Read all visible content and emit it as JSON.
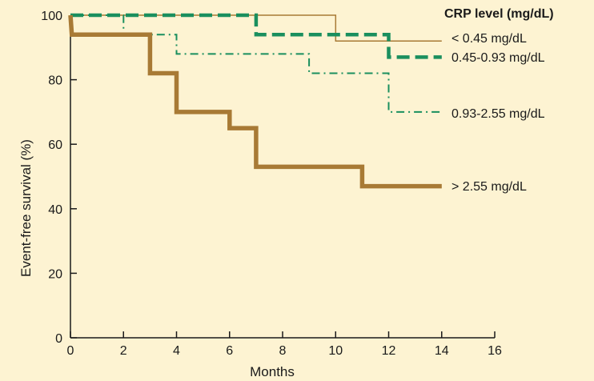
{
  "chart_data": {
    "type": "line",
    "title": "",
    "xlabel": "Months",
    "ylabel": "Event-free survival (%)",
    "xlim": [
      0,
      16
    ],
    "ylim": [
      0,
      100
    ],
    "xticks": [
      0,
      2,
      4,
      6,
      8,
      10,
      12,
      14,
      16
    ],
    "yticks": [
      0,
      20,
      40,
      60,
      80,
      100
    ],
    "grid": false,
    "legend_title": "CRP level (mg/dL)",
    "legend_placement": "right",
    "series": [
      {
        "name": "< 0.45 mg/dL",
        "color": "#a87a35",
        "style": "thin-solid",
        "points": [
          [
            0,
            100
          ],
          [
            10,
            100
          ],
          [
            10,
            92
          ],
          [
            14,
            92
          ]
        ]
      },
      {
        "name": "0.45-0.93 mg/dL",
        "color": "#1a8f5e",
        "style": "thick-dashed",
        "points": [
          [
            0,
            100
          ],
          [
            7,
            100
          ],
          [
            7,
            94
          ],
          [
            12,
            94
          ],
          [
            12,
            87
          ],
          [
            14,
            87
          ]
        ]
      },
      {
        "name": "0.93-2.55 mg/dL",
        "color": "#1a8f5e",
        "style": "dash-dot",
        "points": [
          [
            0,
            100
          ],
          [
            2,
            100
          ],
          [
            2,
            94
          ],
          [
            4,
            94
          ],
          [
            4,
            88
          ],
          [
            9,
            88
          ],
          [
            9,
            82
          ],
          [
            12,
            82
          ],
          [
            12,
            70
          ],
          [
            14,
            70
          ]
        ]
      },
      {
        "name": "> 2.55 mg/dL",
        "color": "#a87a35",
        "style": "thick-solid",
        "points": [
          [
            0,
            100
          ],
          [
            0.05,
            94
          ],
          [
            3,
            94
          ],
          [
            3,
            82
          ],
          [
            4,
            82
          ],
          [
            4,
            70
          ],
          [
            6,
            70
          ],
          [
            6,
            65
          ],
          [
            7,
            65
          ],
          [
            7,
            53
          ],
          [
            11,
            53
          ],
          [
            11,
            47
          ],
          [
            14,
            47
          ]
        ]
      }
    ]
  }
}
